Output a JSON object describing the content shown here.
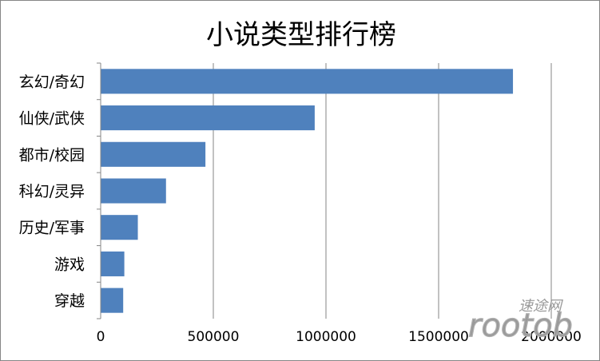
{
  "chart_data": {
    "type": "bar",
    "orientation": "horizontal",
    "title": "小说类型排行榜",
    "categories": [
      "玄幻/奇幻",
      "仙侠/武侠",
      "都市/校园",
      "科幻/灵异",
      "历史/军事",
      "游戏",
      "穿越"
    ],
    "values": [
      1830000,
      950000,
      465000,
      290000,
      165000,
      105000,
      100000
    ],
    "xlim": [
      0,
      2000000
    ],
    "xticks": [
      0,
      500000,
      1000000,
      1500000,
      2000000
    ],
    "xtick_labels": [
      "0",
      "500000",
      "1000000",
      "1500000",
      "2000000"
    ],
    "xlabel": "",
    "ylabel": "",
    "grid": "vertical",
    "legend": "none",
    "bar_color": "#4f81bd",
    "grid_color": "#868686"
  },
  "watermark": {
    "text_cn": "速途网",
    "text_en": "rootob"
  }
}
